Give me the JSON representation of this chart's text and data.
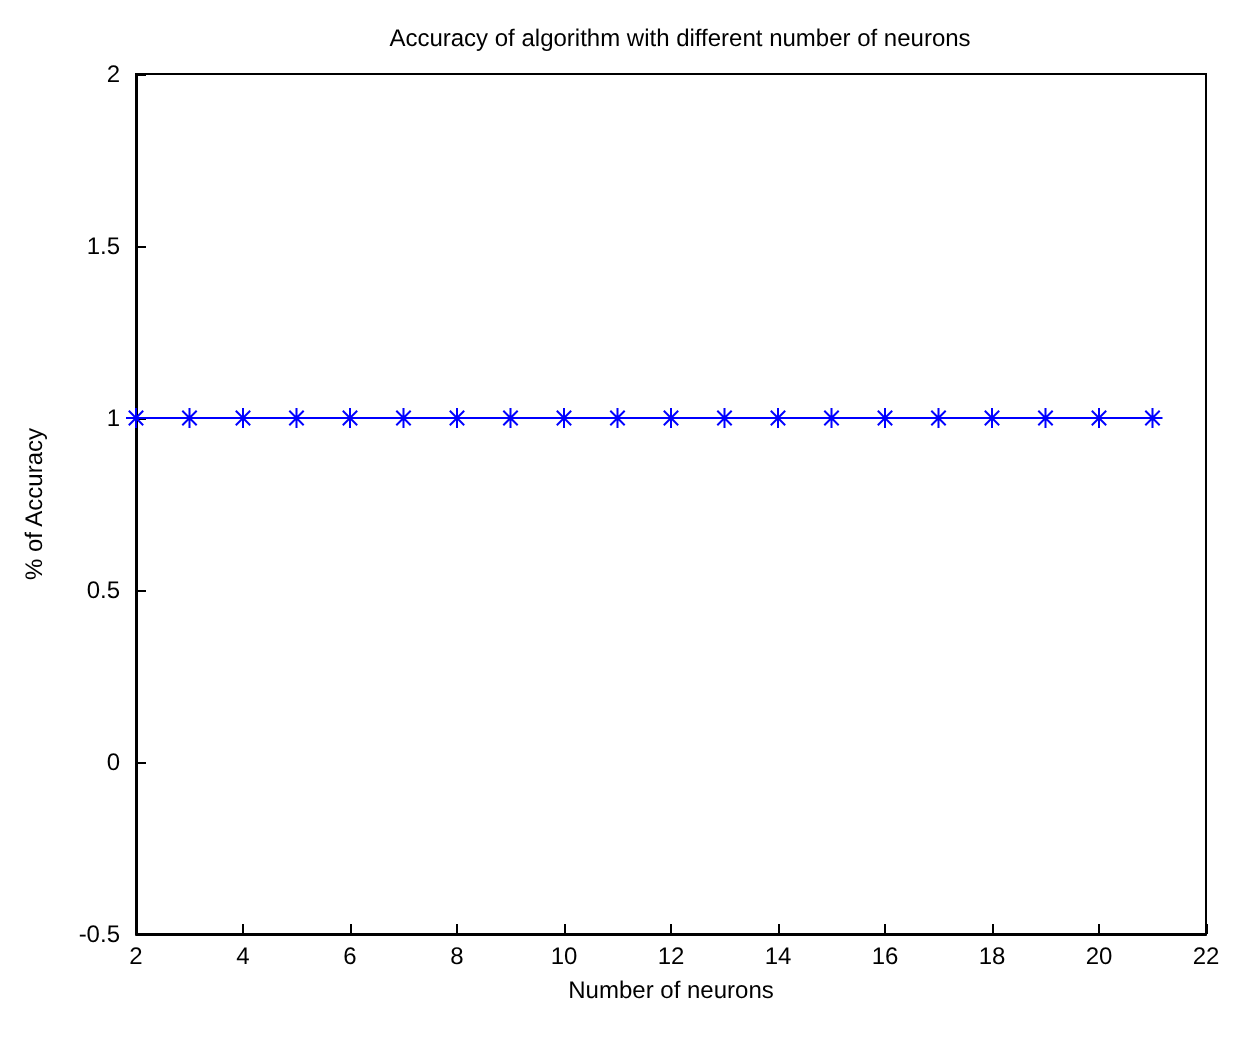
{
  "chart_data": {
    "type": "line",
    "title": "Accuracy of algorithm with different number of neurons",
    "xlabel": "Number of neurons",
    "ylabel": "% of Accuracy",
    "x": [
      2,
      3,
      4,
      5,
      6,
      7,
      8,
      9,
      10,
      11,
      12,
      13,
      14,
      15,
      16,
      17,
      18,
      19,
      20,
      21
    ],
    "series": [
      {
        "color": "#0000ff",
        "values": [
          1,
          1,
          1,
          1,
          1,
          1,
          1,
          1,
          1,
          1,
          1,
          1,
          1,
          1,
          1,
          1,
          1,
          1,
          1,
          1
        ]
      }
    ],
    "xlim": [
      2,
      22
    ],
    "xticks": [
      2,
      4,
      6,
      8,
      10,
      12,
      14,
      16,
      18,
      20,
      22
    ],
    "ylim": [
      -0.5,
      2
    ],
    "yticks": [
      -0.5,
      0,
      0.5,
      1,
      1.5,
      2
    ],
    "grid": false,
    "marker": "cross",
    "line_style": "solid"
  }
}
